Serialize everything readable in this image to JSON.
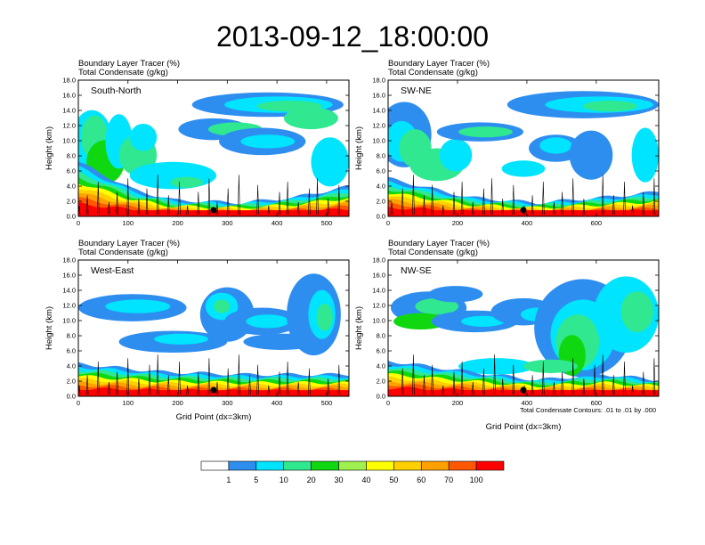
{
  "chart_data": {
    "type": "heatmap",
    "title": "2013-09-12_18:00:00",
    "colorbar": {
      "labels": [
        "1",
        "5",
        "10",
        "20",
        "30",
        "40",
        "50",
        "60",
        "70",
        "100"
      ],
      "colors": [
        "#ffffff",
        "#2d8ef0",
        "#00e4ff",
        "#30e890",
        "#10d810",
        "#a0f050",
        "#ffff00",
        "#ffd000",
        "#ffa000",
        "#ff5800",
        "#ff0000"
      ]
    },
    "footer": "Total Condensate Contours: .01 to .01 by .000",
    "panels": [
      {
        "label": "South-North",
        "header_1": "Boundary Layer Tracer    (%)",
        "header_2": "Total Condensate    (g/kg)",
        "ylabel": "Height (km)",
        "xlabel": "",
        "xlim": [
          0,
          545
        ],
        "ylim": [
          0,
          18
        ],
        "xticks": [
          "0",
          "100",
          "200",
          "300",
          "400",
          "500"
        ],
        "yticks": [
          "0.0",
          "2.0",
          "4.0",
          "6.0",
          "8.0",
          "10.0",
          "12.0",
          "14.0",
          "16.0",
          "18.0"
        ]
      },
      {
        "label": "SW-NE",
        "header_1": "Boundary Layer Tracer    (%)",
        "header_2": "Total Condensate    (g/kg)",
        "ylabel": "Height (km)",
        "xlabel": "",
        "xlim": [
          0,
          780
        ],
        "ylim": [
          0,
          18
        ],
        "xticks": [
          "0",
          "200",
          "400",
          "600"
        ],
        "yticks": [
          "0.0",
          "2.0",
          "4.0",
          "6.0",
          "8.0",
          "10.0",
          "12.0",
          "14.0",
          "16.0",
          "18.0"
        ]
      },
      {
        "label": "West-East",
        "header_1": "Boundary Layer Tracer    (%)",
        "header_2": "Total Condensate    (g/kg)",
        "ylabel": "Height (km)",
        "xlabel": "Grid Point (dx=3km)",
        "xlim": [
          0,
          545
        ],
        "ylim": [
          0,
          18
        ],
        "xticks": [
          "0",
          "100",
          "200",
          "300",
          "400",
          "500"
        ],
        "yticks": [
          "0.0",
          "2.0",
          "4.0",
          "6.0",
          "8.0",
          "10.0",
          "12.0",
          "14.0",
          "16.0",
          "18.0"
        ]
      },
      {
        "label": "NW-SE",
        "header_1": "Boundary Layer Tracer    (%)",
        "header_2": "Total Condensate    (g/kg)",
        "ylabel": "Height (km)",
        "xlabel": "Grid Point (dx=3km)",
        "xlim": [
          0,
          780
        ],
        "ylim": [
          0,
          18
        ],
        "xticks": [
          "0",
          "200",
          "400",
          "600"
        ],
        "yticks": [
          "0.0",
          "2.0",
          "4.0",
          "6.0",
          "8.0",
          "10.0",
          "12.0",
          "14.0",
          "16.0",
          "18.0"
        ]
      }
    ]
  }
}
